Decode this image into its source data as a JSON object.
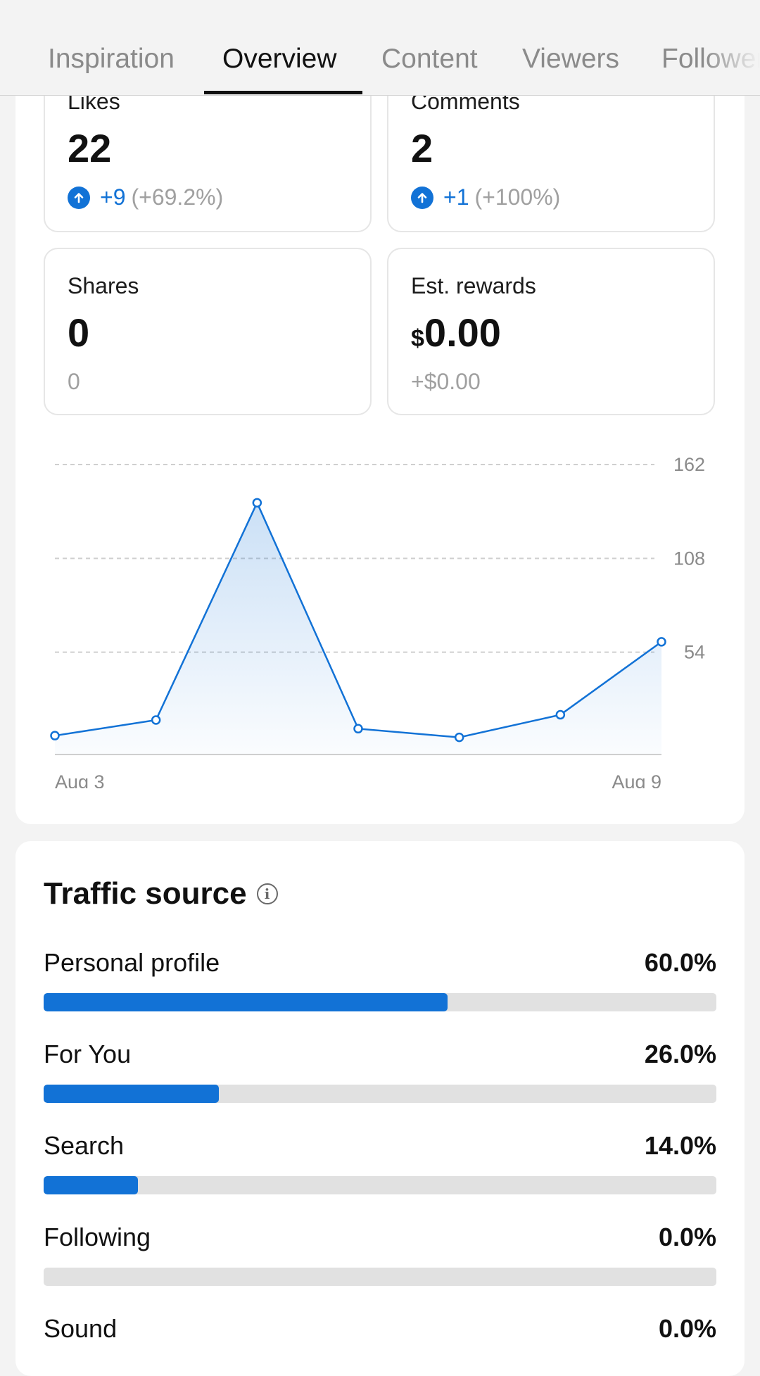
{
  "tabs": [
    {
      "label": "Inspiration",
      "active": false
    },
    {
      "label": "Overview",
      "active": true
    },
    {
      "label": "Content",
      "active": false
    },
    {
      "label": "Viewers",
      "active": false
    },
    {
      "label": "Followers",
      "active": false
    }
  ],
  "metrics": {
    "likes": {
      "label": "Likes",
      "value": "22",
      "delta": "+9",
      "delta_pct": "(+69.2%)"
    },
    "comments": {
      "label": "Comments",
      "value": "2",
      "delta": "+1",
      "delta_pct": "(+100%)"
    },
    "shares": {
      "label": "Shares",
      "value": "0",
      "delta_text": "0"
    },
    "rewards": {
      "label": "Est. rewards",
      "currency": "$",
      "value": "0.00",
      "delta_text": "+$0.00"
    }
  },
  "chart_data": {
    "type": "area",
    "x": [
      "Aug 3",
      "Aug 4",
      "Aug 5",
      "Aug 6",
      "Aug 7",
      "Aug 8",
      "Aug 9"
    ],
    "x_tick_labels": [
      "Aug 3",
      "Aug 9"
    ],
    "values": [
      6,
      15,
      140,
      10,
      5,
      18,
      60
    ],
    "y_ticks": [
      54,
      108,
      162
    ],
    "ylim": [
      0,
      162
    ],
    "grid": true,
    "color": "#1272d6"
  },
  "traffic": {
    "title": "Traffic source",
    "sources": [
      {
        "name": "Personal profile",
        "pct_label": "60.0%",
        "pct": 60.0
      },
      {
        "name": "For You",
        "pct_label": "26.0%",
        "pct": 26.0
      },
      {
        "name": "Search",
        "pct_label": "14.0%",
        "pct": 14.0
      },
      {
        "name": "Following",
        "pct_label": "0.0%",
        "pct": 0.0
      },
      {
        "name": "Sound",
        "pct_label": "0.0%",
        "pct": 0.0
      }
    ]
  },
  "colors": {
    "accent": "#1272d6",
    "muted": "#8a8a8a"
  }
}
